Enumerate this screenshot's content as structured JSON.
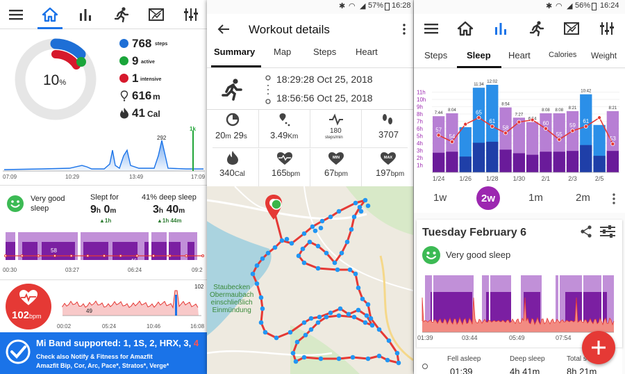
{
  "left": {
    "nav": {
      "icons": [
        "menu-icon",
        "home-icon",
        "bar-chart-icon",
        "runner-icon",
        "mail-chart-icon",
        "equalizer-icon"
      ]
    },
    "ring": {
      "percent": "10",
      "unit": "%"
    },
    "stats": [
      {
        "value": "768",
        "unit": "steps",
        "color": "#1e6fd6"
      },
      {
        "value": "9",
        "unit": "active",
        "color": "#1aa53a"
      },
      {
        "value": "1",
        "unit": "intensive",
        "color": "#d6192c"
      },
      {
        "value": "616",
        "unit": "m",
        "icon": "footprint-pin-icon"
      },
      {
        "value": "41",
        "unit": "Cal",
        "icon": "flame-icon"
      }
    ],
    "steps_chart": {
      "peak_label": "292",
      "goal_label": "1k",
      "x_ticks": [
        "07:09",
        "10:29",
        "13:49",
        "17:09"
      ]
    },
    "sleep": {
      "quality": "Very good sleep",
      "slept_label": "Slept for",
      "slept_h": "9",
      "slept_h_unit": "h",
      "slept_m": "0",
      "slept_m_unit": "m",
      "slept_delta": "▲1h",
      "deep_label": "41% deep sleep",
      "deep_h": "3",
      "deep_h_unit": "h",
      "deep_m": "40",
      "deep_m_unit": "m",
      "deep_delta": "▲1h 44m",
      "chart_labels": [
        "58",
        "46"
      ],
      "x_ticks": [
        "00:30",
        "03:27",
        "06:24",
        "09:2"
      ]
    },
    "heart": {
      "value": "102",
      "unit": "bpm",
      "labels": [
        "102",
        "49"
      ],
      "x_ticks": [
        "00:02",
        "05:24",
        "10:46",
        "16:08"
      ]
    },
    "banner": {
      "title_prefix": "Mi Band supported: 1, 1S, 2, HRX, 3, ",
      "title_suffix": "4",
      "line1": "Check also Notify & Fitness for Amazfit",
      "line2": "Amazfit Bip, Cor, Arc, Pace*, Stratos*, Verge*"
    }
  },
  "middle": {
    "status": {
      "battery": "57%",
      "time": "16:28"
    },
    "title": "Workout details",
    "tabs": [
      "Summary",
      "Map",
      "Steps",
      "Heart"
    ],
    "active_tab": "Summary",
    "start_time": "18:29:28 Oct 25, 2018",
    "end_time": "18:56:56 Oct 25, 2018",
    "metrics": [
      {
        "icon": "timer-icon",
        "value": "20",
        "unit": "m",
        "value2": " 29",
        "unit2": "s"
      },
      {
        "icon": "distance-pin-icon",
        "value": "3.49",
        "unit": "Km"
      },
      {
        "icon": "cadence-icon",
        "value": "180",
        "unit": "steps/min"
      },
      {
        "icon": "footsteps-icon",
        "value": "3707",
        "unit": ""
      },
      {
        "icon": "flame-icon",
        "value": "340",
        "unit": "Cal"
      },
      {
        "icon": "heart-wave-icon",
        "value": "165",
        "unit": "bpm"
      },
      {
        "icon": "heart-min-icon",
        "value": "67",
        "unit": "bpm"
      },
      {
        "icon": "heart-max-icon",
        "value": "197",
        "unit": "bpm"
      }
    ],
    "map_label": [
      "Staubecken",
      "Obermaubach",
      "einschließlich",
      "Einmündung"
    ]
  },
  "right": {
    "status": {
      "battery": "56%",
      "time": "16:24"
    },
    "tabs": [
      "Steps",
      "Sleep",
      "Heart",
      "Calories",
      "Weight"
    ],
    "active_tab": "Sleep",
    "chart_data": {
      "type": "bar",
      "y_ticks": [
        "11h",
        "10h",
        "9h",
        "8h",
        "7h",
        "6h",
        "5h",
        "4h",
        "3h",
        "2h",
        "1h"
      ],
      "x_ticks": [
        "1/24",
        "1/26",
        "1/28",
        "1/30",
        "2/1",
        "2/3",
        "2/5"
      ],
      "top_labels": [
        "7:44",
        "8:04",
        "",
        "11:34",
        "12:02",
        "8:54",
        "7:27",
        "6:54",
        "8:08",
        "8:08",
        "8:21",
        "10:42",
        "",
        "8:21"
      ],
      "values_hours": [
        7.7,
        8.1,
        6.2,
        11.6,
        12.0,
        8.9,
        7.5,
        6.9,
        8.1,
        8.1,
        8.4,
        10.7,
        6.5,
        8.4
      ],
      "deep_points": [
        57,
        54,
        62,
        65,
        61,
        58,
        63,
        64,
        60,
        55,
        59,
        61,
        65,
        53
      ],
      "deep_labels": [
        "57",
        "54",
        "",
        "65",
        "61",
        "58",
        "",
        "",
        "60",
        "55",
        "59",
        "61",
        "",
        "53"
      ]
    },
    "ranges": [
      "1w",
      "2w",
      "1m",
      "2m"
    ],
    "active_range": "2w",
    "day_title": "Tuesday February 6",
    "quality": "Very good sleep",
    "day_x_ticks": [
      "01:39",
      "03:44",
      "05:49",
      "07:54"
    ],
    "footer": [
      {
        "label": "Fell asleep",
        "value": "01:39"
      },
      {
        "label": "Deep sleep",
        "value": "4h 41m"
      },
      {
        "label": "Total s",
        "value": "8h 21m"
      }
    ]
  }
}
